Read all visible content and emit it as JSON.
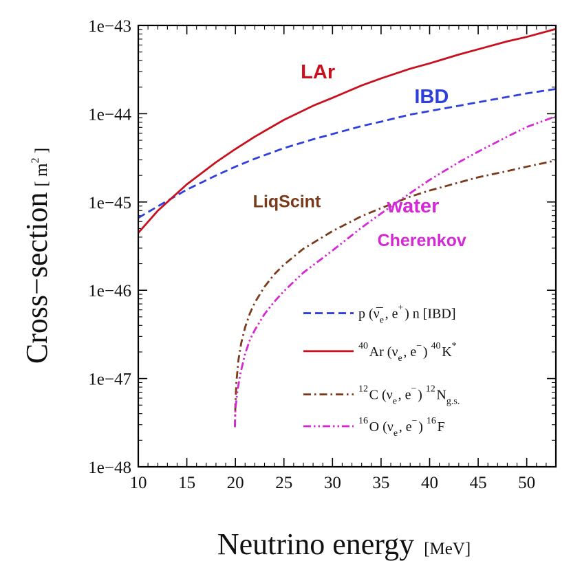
{
  "chart_data": {
    "type": "line",
    "title": "",
    "xlabel_main": "Neutrino energy",
    "xlabel_unit": "[MeV]",
    "ylabel_main": "Cross−section",
    "ylabel_unit_open": "[ m",
    "ylabel_unit_sup": "2",
    "ylabel_unit_close": " ]",
    "xlim": [
      10,
      53
    ],
    "ylim_log10": [
      -48,
      -43
    ],
    "y_scale": "log",
    "x_ticks": [
      10,
      15,
      20,
      25,
      30,
      35,
      40,
      45,
      50
    ],
    "y_ticks": [
      "1e−48",
      "1e−47",
      "1e−46",
      "1e−45",
      "1e−44",
      "1e−43"
    ],
    "grid": false,
    "legend_placement": "bottom-right",
    "series": [
      {
        "name": "IBD",
        "color": "#2f3fdc",
        "dash": "dashed",
        "x": [
          10,
          12,
          15,
          18,
          20,
          22,
          25,
          28,
          30,
          33,
          35,
          38,
          40,
          43,
          45,
          48,
          50,
          53
        ],
        "log10_y": [
          -45.18,
          -45.05,
          -44.86,
          -44.7,
          -44.6,
          -44.51,
          -44.39,
          -44.29,
          -44.23,
          -44.14,
          -44.09,
          -44.01,
          -43.97,
          -43.91,
          -43.87,
          -43.81,
          -43.77,
          -43.72
        ]
      },
      {
        "name": "LAr",
        "color": "#c8101e",
        "dash": "solid",
        "x": [
          10,
          12,
          15,
          18,
          20,
          22,
          25,
          28,
          30,
          33,
          35,
          38,
          40,
          43,
          45,
          48,
          50,
          53
        ],
        "log10_y": [
          -45.35,
          -45.1,
          -44.8,
          -44.55,
          -44.4,
          -44.26,
          -44.07,
          -43.91,
          -43.82,
          -43.68,
          -43.6,
          -43.49,
          -43.43,
          -43.33,
          -43.27,
          -43.18,
          -43.13,
          -43.04
        ]
      },
      {
        "name": "LiqScint",
        "color": "#7a3a1c",
        "dash": "dashdot",
        "x": [
          19.95,
          20,
          20.1,
          20.3,
          20.6,
          21,
          21.5,
          22,
          23,
          24,
          25,
          27,
          30,
          33,
          35,
          38,
          40,
          43,
          45,
          48,
          50,
          53
        ],
        "log10_y": [
          -47.55,
          -47.3,
          -47.05,
          -46.8,
          -46.6,
          -46.42,
          -46.26,
          -46.14,
          -45.96,
          -45.82,
          -45.71,
          -45.53,
          -45.33,
          -45.16,
          -45.07,
          -44.94,
          -44.87,
          -44.78,
          -44.72,
          -44.65,
          -44.6,
          -44.53
        ]
      },
      {
        "name": "water Cherenkov",
        "color": "#d42ad4",
        "dash": "dashdotdot",
        "x": [
          19.95,
          20,
          20.2,
          20.5,
          21,
          21.5,
          22,
          23,
          24,
          25,
          27,
          30,
          33,
          35,
          38,
          40,
          43,
          45,
          48,
          50,
          53
        ],
        "log10_y": [
          -47.55,
          -47.35,
          -47.15,
          -46.95,
          -46.72,
          -46.56,
          -46.45,
          -46.27,
          -46.13,
          -46.01,
          -45.8,
          -45.55,
          -45.29,
          -45.13,
          -44.9,
          -44.75,
          -44.55,
          -44.43,
          -44.26,
          -44.15,
          -44.03
        ]
      }
    ],
    "annotations": [
      {
        "text": "LAr",
        "color": "#c8101e",
        "x": 28.5,
        "log10_y": -43.6
      },
      {
        "text": "IBD",
        "color": "#2f3fdc",
        "x": 40.2,
        "log10_y": -43.88
      },
      {
        "text": "LiqScint",
        "color": "#7a3a1c",
        "x": 25.3,
        "log10_y": -45.06
      },
      {
        "text": "water",
        "color": "#d42ad4",
        "x": 38.3,
        "log10_y": -45.12
      },
      {
        "text": "Cherenkov",
        "color": "#d42ad4",
        "x": 39.2,
        "log10_y": -45.5
      }
    ],
    "legend": [
      {
        "series": "IBD",
        "parts": [
          {
            "t": "p ("
          },
          {
            "t": "ν̅",
            "sub": "e"
          },
          {
            "t": ", e"
          },
          {
            "t": "",
            "sup": "+"
          },
          {
            "t": ") n [IBD]"
          }
        ]
      },
      {
        "series": "LAr",
        "parts": [
          {
            "t": "",
            "sup": "40"
          },
          {
            "t": "Ar ("
          },
          {
            "t": "ν",
            "sub": "e"
          },
          {
            "t": ", e"
          },
          {
            "t": "",
            "sup": "−"
          },
          {
            "t": ") "
          },
          {
            "t": "",
            "sup": "40"
          },
          {
            "t": "K"
          },
          {
            "t": "",
            "sup": "*"
          }
        ]
      },
      {
        "series": "LiqScint",
        "parts": [
          {
            "t": "",
            "sup": "12"
          },
          {
            "t": "C  ("
          },
          {
            "t": "ν",
            "sub": "e"
          },
          {
            "t": ", e"
          },
          {
            "t": "",
            "sup": "−"
          },
          {
            "t": ") "
          },
          {
            "t": "",
            "sup": "12"
          },
          {
            "t": "N"
          },
          {
            "t": "",
            "sub": "g.s."
          }
        ]
      },
      {
        "series": "water Cherenkov",
        "parts": [
          {
            "t": "",
            "sup": "16"
          },
          {
            "t": "O  ("
          },
          {
            "t": "ν",
            "sub": "e"
          },
          {
            "t": ", e"
          },
          {
            "t": "",
            "sup": "−"
          },
          {
            "t": ") "
          },
          {
            "t": "",
            "sup": "16"
          },
          {
            "t": "F"
          }
        ]
      }
    ]
  }
}
